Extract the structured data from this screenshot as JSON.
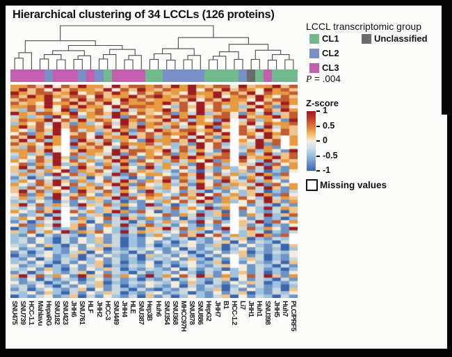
{
  "figure": {
    "title": "Hierarchical clustering of 34 LCCLs (126 proteins)",
    "legend": {
      "title": "LCCL transcriptomic group",
      "items": [
        {
          "label": "CL1",
          "color": "#72b98e"
        },
        {
          "label": "CL2",
          "color": "#7b8fc7"
        },
        {
          "label": "CL3",
          "color": "#c45fae"
        },
        {
          "label": "Unclassified",
          "color": "#6b6b6b"
        }
      ],
      "p_label": "P",
      "p_rest": " = .004"
    },
    "colorbar": {
      "title": "Z-score",
      "ticks": [
        "1",
        "0.5",
        "0",
        "-0.5",
        "-1"
      ]
    },
    "missing_label": "Missing values"
  },
  "chart_data": {
    "type": "heatmap",
    "title": "Hierarchical clustering of 34 LCCLs (126 proteins)",
    "n_columns": 34,
    "n_proteins": 126,
    "zscore_range": [
      -1,
      1
    ],
    "legend_position": "right",
    "columns": [
      "SNU475",
      "SNU739",
      "HCC-1.1",
      "Mahlavu",
      "HepaRG",
      "SNU182",
      "SNU423",
      "JHH6",
      "SNU761",
      "HLF",
      "JHH2",
      "HCC-3",
      "SNU449",
      "JHH4",
      "HLE",
      "SNU387",
      "Hep3B",
      "Huh6",
      "SNU354",
      "SNU368",
      "MHCC97H",
      "SNU878",
      "SNU886",
      "HepG2",
      "JHH7",
      "B1",
      "HCC-1.2",
      "Li7",
      "JHH1",
      "Huh1",
      "SNU398",
      "JHH5",
      "Huh7",
      "PLC/PRF5"
    ],
    "column_groups": [
      "CL3",
      "CL3",
      "CL3",
      "CL3",
      "CL2",
      "CL3",
      "CL3",
      "CL3",
      "CL2",
      "CL3",
      "CL2",
      "CL1",
      "CL3",
      "CL3",
      "CL3",
      "CL3",
      "CL1",
      "CL1",
      "CL2",
      "CL2",
      "CL2",
      "CL2",
      "CL2",
      "CL1",
      "CL1",
      "CL1",
      "CL1",
      "CL2",
      "Unclassified",
      "CL1",
      "CL3",
      "CL1",
      "CL1",
      "CL1"
    ],
    "group_colors": {
      "CL1": "#72b98e",
      "CL2": "#7b8fc7",
      "CL3": "#c45fae",
      "Unclassified": "#6b6b6b"
    },
    "p_value": "P = .004",
    "colorscale": [
      [
        -1,
        "#3b66ad"
      ],
      [
        -0.5,
        "#9fc2de"
      ],
      [
        0,
        "#f4ecd9"
      ],
      [
        0.5,
        "#e79a3f"
      ],
      [
        1,
        "#9d1c20"
      ]
    ],
    "matrix_encoding": "Estimated from pixels (exact values unreadable). Each char digit 0-8 maps to z = digit*0.25 - 1. 126 protein rows downsampled to 63 rendered rows.",
    "matrix": [
      "6675847586648577675868657748566857",
      "6857485766584758657668475857648675",
      "8657756846758647575648668575847667",
      "7586865774856685786577568467586475",
      "5766847585764867566758475866485776",
      "7564866857584766768574857665847586",
      "6675847586648577664275847362586174",
      "5273648165742836568574857665847586",
      "8657756846758647547163825741638257",
      "3625184726538174675868657748566857",
      "5766847585764867558372641853726418",
      "2647385162473851675648668575847667",
      "6857485766584758652736481657428365",
      "6427584736258617486577568467586475",
      "4716382574163825757668475857648675",
      "7586865774856685726473851624738516",
      "5837264185372641866758475866485776",
      "7564866857584766736251847265381746",
      "5273648165742836564275847362586174",
      "6675847586648577658372641853726418",
      "3625184726538174647163825741638257",
      "2647385162473851675868657748566857",
      "6427584736258617452736481657428365",
      "4716382574163825736251847265381746",
      "5837264185372641826473851624738516",
      "5273648165742836523142031425130214",
      "3625184726538174664275847362586174",
      "1302421350413203147163825741638257",
      "2647385162473851658372641853726418",
      "6427584736258617436251847265381746",
      "5273648165742836526473851624738516",
      "5837264185372641832415203142530213",
      "4716382574163825764275847362586174",
      "3625184726538174652736481657428365",
      "2314203142513021426473851624738516",
      "5837264185372641813024213504132031",
      "3241520314253021352736481657428365",
      "6427584736258617402134125031421305",
      "4123021413502132447163825741638257",
      "2647385162473851621403132024131202",
      "1302421350413203136251847265381746",
      "4716382574163825723142031425130214",
      "0213412503142130558372641853726418",
      "5273648165742836532415203142530213",
      "2140313202413120264275847362586174",
      "2314203142513021441230214135021324",
      "2314203142513021413024213504132031",
      "3241520314253021302134125031421305",
      "4123021413502132421403132024131202",
      "1302421350413203141230214135021324",
      "0213412503142130523142031425130214",
      "2140313202413120232415203142530213",
      "2314203142513021402134125031421305",
      "4123021413502132413024213504132031",
      "3241520314253021321403132024131202",
      "1302421350413203123142031425130214",
      "5837264185372641826473851624738516",
      "2140313202413120213024213504132031",
      "4123021413502132432415203142530213",
      "2314203142513021421403132024131202",
      "1302421350413203102134125031421305",
      "3241520314253021341230214135021324",
      "0213412503142130513024213504132031"
    ],
    "missing_blocks": [
      {
        "col": 6,
        "from": 13,
        "to": 20
      },
      {
        "col": 6,
        "from": 36,
        "to": 41
      },
      {
        "col": 26,
        "from": 10,
        "to": 23
      },
      {
        "col": 26,
        "from": 35,
        "to": 43
      },
      {
        "col": 26,
        "from": 50,
        "to": 53
      },
      {
        "col": 32,
        "from": 15,
        "to": 18
      },
      {
        "col": 33,
        "from": 26,
        "to": 28
      },
      {
        "col": 33,
        "from": 44,
        "to": 46
      }
    ],
    "dendrogram_note": "Approximate topology; heights normalized 0-1, leaves are 1-based column indices.",
    "dendrogram": [
      [
        [
          [
            1,
            2,
            0.18
          ],
          3,
          0.32
        ],
        [
          [
            [
              [
                4,
                5,
                0.16
              ],
              [
                6,
                7,
                0.14
              ],
              0.27
            ],
            [
              [
                8,
                9,
                0.15
              ],
              10,
              0.24
            ],
            0.37
          ],
          [
            [
              [
                11,
                12,
                0.16
              ],
              13,
              0.27
            ],
            [
              [
                14,
                15,
                0.14
              ],
              16,
              0.25
            ],
            0.4
          ],
          0.5
        ],
        0.62
      ],
      [
        [
          [
            [
              17,
              18,
              0.15
            ],
            [
              19,
              20,
              0.13
            ],
            0.29
          ],
          [
            [
              21,
              22,
              0.14
            ],
            23,
            0.25
          ],
          0.42
        ],
        [
          [
            [
              [
                24,
                25,
                0.14
              ],
              26,
              0.23
            ],
            [
              27,
              28,
              0.15
            ],
            0.34
          ],
          [
            [
              29,
              30,
              0.15
            ],
            [
              [
                31,
                32,
                0.13
              ],
              [
                33,
                34,
                0.14
              ],
              0.27
            ],
            0.38
          ],
          0.53
        ],
        0.7
      ],
      1.0
    ]
  }
}
